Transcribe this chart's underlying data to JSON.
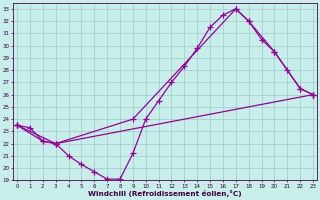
{
  "xlabel": "Windchill (Refroidissement éolien,°C)",
  "xlim": [
    -0.3,
    23.3
  ],
  "ylim": [
    19,
    33.5
  ],
  "xticks": [
    0,
    1,
    2,
    3,
    4,
    5,
    6,
    7,
    8,
    9,
    10,
    11,
    12,
    13,
    14,
    15,
    16,
    17,
    18,
    19,
    20,
    21,
    22,
    23
  ],
  "yticks": [
    19,
    20,
    21,
    22,
    23,
    24,
    25,
    26,
    27,
    28,
    29,
    30,
    31,
    32,
    33
  ],
  "bg_color": "#c8eeea",
  "line_color": "#990099",
  "grid_color": "#99cccc",
  "line1_x": [
    0,
    1,
    2,
    3,
    4,
    5,
    6,
    7,
    8,
    9,
    10,
    11,
    12,
    13,
    14,
    15,
    16,
    17,
    18,
    19,
    20,
    21,
    22,
    23
  ],
  "line1_y": [
    23.5,
    23.3,
    22.2,
    22.0,
    21.0,
    20.3,
    19.7,
    19.1,
    19.1,
    21.2,
    24.0,
    25.5,
    27.0,
    28.3,
    29.8,
    31.5,
    32.5,
    33.0,
    32.0,
    30.5,
    29.5,
    28.0,
    26.5,
    26.0
  ],
  "line2_x": [
    0,
    2,
    3,
    9,
    17,
    18,
    20,
    22,
    23
  ],
  "line2_y": [
    23.5,
    22.2,
    22.0,
    24.0,
    33.0,
    32.0,
    29.5,
    26.5,
    26.0
  ],
  "line3_x": [
    0,
    3,
    23
  ],
  "line3_y": [
    23.5,
    22.0,
    26.0
  ]
}
